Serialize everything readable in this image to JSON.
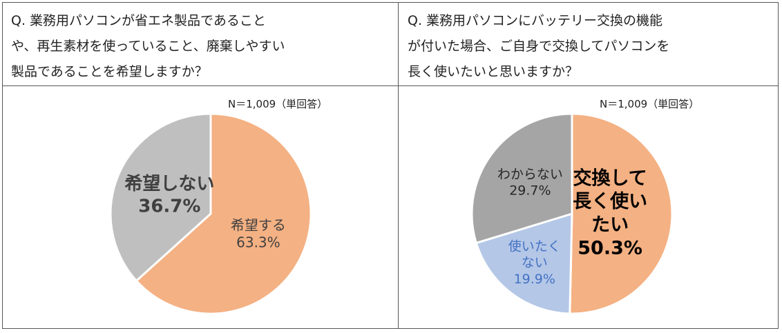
{
  "left": {
    "question_lines": [
      "Q. 業務用パソコンが省エネ製品であること",
      "や、再生素材を使っていること、廃棄しやすい",
      "製品であることを希望しますか？"
    ],
    "n_label": "N＝1,009（単回答）"
  },
  "right": {
    "question_lines": [
      "Q. 業務用パソコンにバッテリー交換の機能",
      "が付いた場合、ご自身で交換してパソコンを",
      "長く使いたいと思いますか？"
    ],
    "n_label": "N＝1,009（単回答）"
  },
  "chart_data": [
    {
      "type": "pie",
      "title": "",
      "slices": [
        {
          "label_lines": [
            "希望する"
          ],
          "value": 63.3,
          "value_label": "63.3%",
          "color": "#f4b183",
          "text_color": "#404040"
        },
        {
          "label_lines": [
            "希望しない"
          ],
          "value": 36.7,
          "value_label": "36.7%",
          "color": "#bfbfbf",
          "text_color": "#404040"
        }
      ]
    },
    {
      "type": "pie",
      "title": "",
      "slices": [
        {
          "label_lines": [
            "交換して",
            "長く使い",
            "たい"
          ],
          "value": 50.3,
          "value_label": "50.3%",
          "color": "#f4b183",
          "text_color": "#000000"
        },
        {
          "label_lines": [
            "使いたく",
            "ない"
          ],
          "value": 19.9,
          "value_label": "19.9%",
          "color": "#b4c7e7",
          "text_color": "#4472c4"
        },
        {
          "label_lines": [
            "わからない"
          ],
          "value": 29.7,
          "value_label": "29.7%",
          "color": "#a5a5a5",
          "text_color": "#262626"
        }
      ]
    }
  ]
}
